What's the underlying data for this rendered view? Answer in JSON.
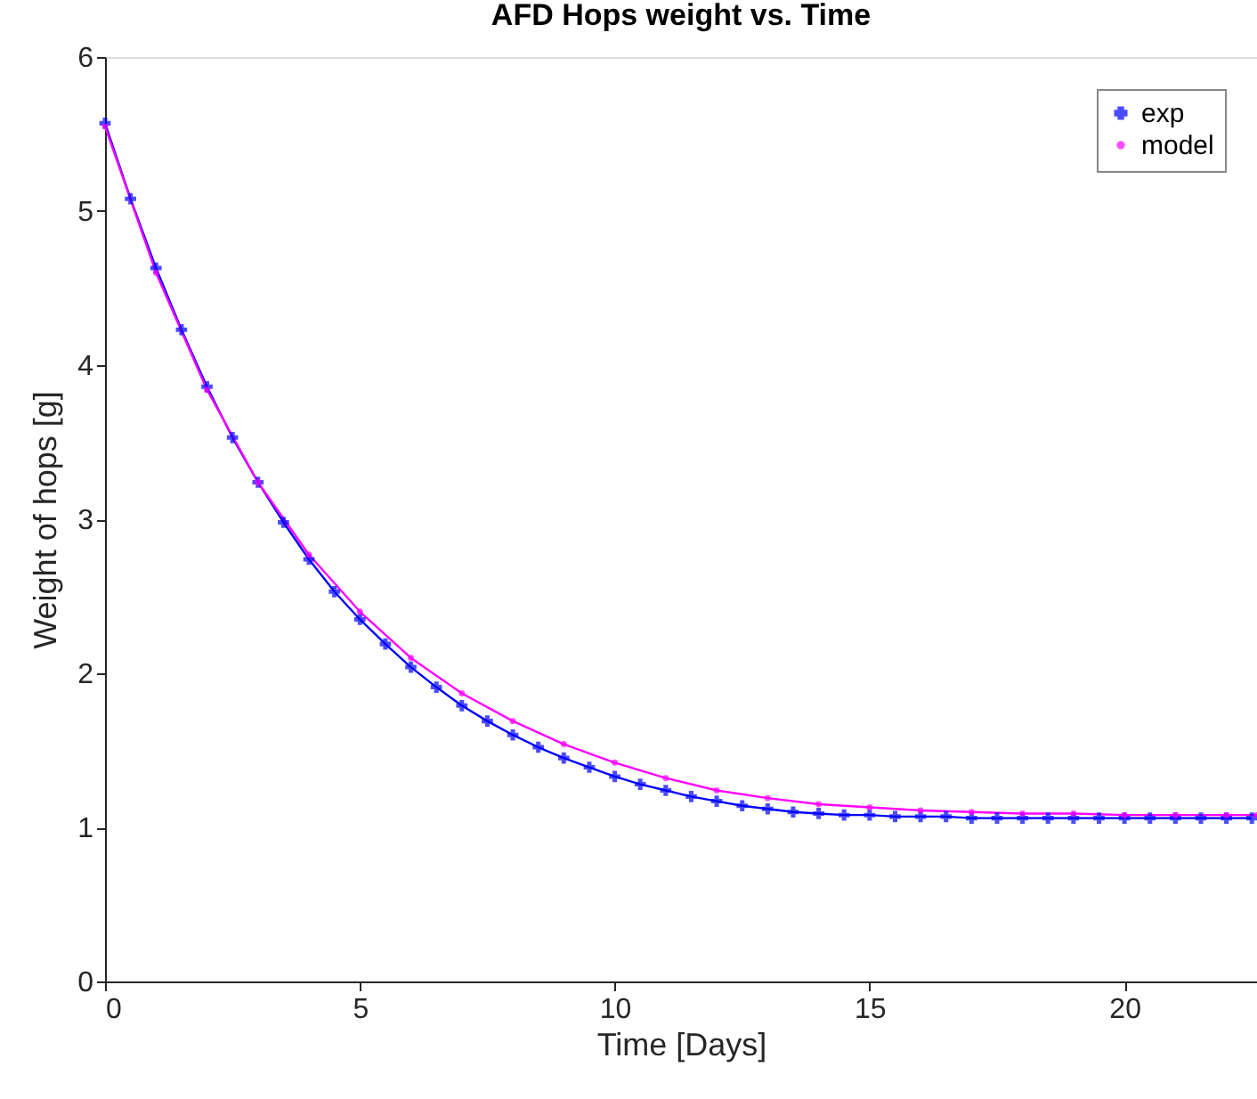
{
  "chart_data": {
    "type": "line",
    "title": "AFD Hops weight vs. Time",
    "xlabel": "Time [Days]",
    "ylabel": "Weight of hops [g]",
    "xlim": [
      0,
      22.6
    ],
    "xticks": [
      0,
      5,
      10,
      15,
      20
    ],
    "ylim": [
      0,
      6
    ],
    "yticks": [
      0,
      1,
      2,
      3,
      4,
      5,
      6
    ],
    "grid": false,
    "legend": "top right",
    "series": [
      {
        "name": "exp",
        "color": "#0000ff",
        "marker": "cross",
        "x": [
          0,
          0.5,
          1,
          1.5,
          2,
          2.5,
          3,
          3.5,
          4,
          4.5,
          5,
          5.5,
          6,
          6.5,
          7,
          7.5,
          8,
          8.5,
          9,
          9.5,
          10,
          10.5,
          11,
          11.5,
          12,
          12.5,
          13,
          13.5,
          14,
          14.5,
          15,
          15.5,
          16,
          16.5,
          17,
          17.5,
          18,
          18.5,
          19,
          19.5,
          20,
          20.5,
          21,
          21.5,
          22,
          22.5
        ],
        "values": [
          5.57,
          5.08,
          4.63,
          4.23,
          3.86,
          3.53,
          3.24,
          2.98,
          2.74,
          2.53,
          2.35,
          2.19,
          2.04,
          1.91,
          1.79,
          1.69,
          1.6,
          1.52,
          1.45,
          1.39,
          1.33,
          1.28,
          1.24,
          1.2,
          1.17,
          1.14,
          1.12,
          1.1,
          1.09,
          1.08,
          1.08,
          1.07,
          1.07,
          1.07,
          1.06,
          1.06,
          1.06,
          1.06,
          1.06,
          1.06,
          1.06,
          1.06,
          1.06,
          1.06,
          1.06,
          1.06
        ]
      },
      {
        "name": "model",
        "color": "#ff00ff",
        "marker": "circle",
        "x": [
          0,
          1,
          2,
          3,
          4,
          5,
          6,
          7,
          8,
          9,
          10,
          11,
          12,
          13,
          14,
          15,
          16,
          17,
          18,
          19,
          20,
          21,
          22,
          22.6
        ],
        "values": [
          5.55,
          4.6,
          3.84,
          3.24,
          2.77,
          2.4,
          2.1,
          1.87,
          1.69,
          1.54,
          1.42,
          1.32,
          1.24,
          1.19,
          1.15,
          1.13,
          1.11,
          1.1,
          1.09,
          1.09,
          1.08,
          1.08,
          1.08,
          1.08
        ]
      }
    ]
  }
}
